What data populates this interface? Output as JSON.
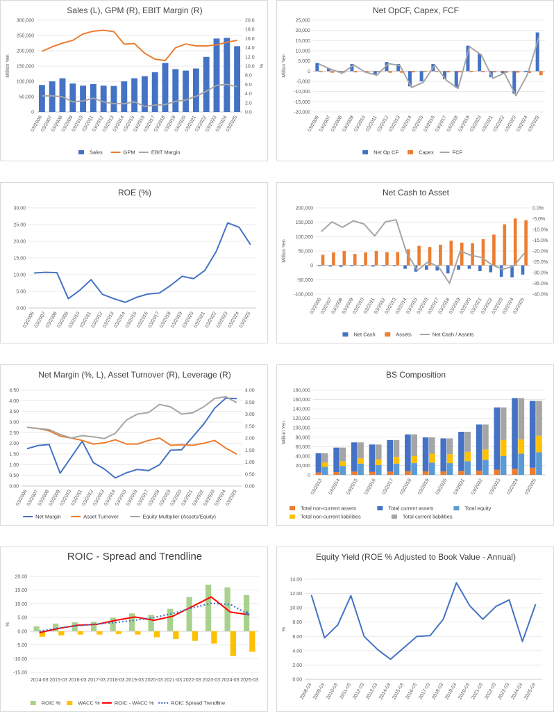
{
  "colors": {
    "blue": "#4472c4",
    "orange": "#ed7d31",
    "gray": "#a5a5a5",
    "yellow": "#ffc000",
    "lightblue": "#5b9bd5",
    "green": "#a9d18e",
    "red": "#ff0000",
    "grid": "#e3e3e3",
    "dark": "#404040"
  },
  "chart_data": [
    {
      "id": "sales",
      "type": "bar+line",
      "title": "Sales (L), GPM (R), EBIT Margin (R)",
      "ylabel": "Million Yen",
      "y2label": "%",
      "ylim": [
        0,
        300000
      ],
      "ystep": 50000,
      "y2lim": [
        0,
        20
      ],
      "y2step": 2,
      "ytick_labels": [
        "0",
        "50,000",
        "100,000",
        "150,000",
        "200,000",
        "250,000",
        "300,000"
      ],
      "y2tick_labels": [
        "0.0",
        "2.0",
        "4.0",
        "6.0",
        "8.0",
        "10.0",
        "12.0",
        "14.0",
        "16.0",
        "18.0",
        "20.0"
      ],
      "categories": [
        "03/2006",
        "03/2007",
        "03/2008",
        "03/2009",
        "03/2010",
        "03/2011",
        "03/2012",
        "03/2013",
        "03/2014",
        "03/2015",
        "03/2016",
        "03/2017",
        "03/2018",
        "03/2019",
        "03/2020",
        "03/2021",
        "03/2022",
        "03/2023",
        "03/2024",
        "03/2025"
      ],
      "series": [
        {
          "name": "Sales",
          "kind": "bar",
          "axis": "left",
          "color": "#4472c4",
          "values": [
            88000,
            100000,
            110000,
            93000,
            86000,
            91000,
            86000,
            85000,
            100000,
            110000,
            117000,
            130000,
            160000,
            140000,
            135000,
            142000,
            180000,
            240000,
            242000,
            215000
          ]
        },
        {
          "name": "GPM",
          "kind": "line",
          "axis": "right",
          "color": "#ed7d31",
          "values": [
            13.2,
            14.2,
            15.0,
            15.6,
            17.0,
            17.6,
            17.8,
            17.5,
            14.8,
            14.9,
            12.8,
            11.5,
            11.2,
            14.0,
            14.8,
            14.4,
            14.4,
            14.6,
            15.2,
            15.6
          ]
        },
        {
          "name": "EBIT Margin",
          "kind": "line",
          "axis": "right",
          "color": "#a5a5a5",
          "values": [
            3.5,
            3.5,
            3.3,
            2.2,
            2.4,
            3.0,
            2.2,
            1.8,
            1.8,
            2.2,
            1.2,
            1.5,
            1.6,
            2.3,
            2.6,
            3.4,
            4.5,
            5.8,
            6.0,
            5.5
          ]
        }
      ]
    },
    {
      "id": "opcf",
      "type": "bar+line",
      "title": "Net OpCF, Capex, FCF",
      "ylabel": "Million Yen",
      "ylim": [
        -20000,
        25000
      ],
      "ystep": 5000,
      "ytick_labels": [
        "-20,000",
        "-15,000",
        "-10,000",
        "-5,000",
        "0",
        "5,000",
        "10,000",
        "15,000",
        "20,000",
        "25,000"
      ],
      "categories": [
        "03/2006",
        "03/2007",
        "03/2008",
        "03/2009",
        "03/2010",
        "03/2011",
        "03/2012",
        "03/2013",
        "03/2014",
        "03/2015",
        "03/2016",
        "03/2017",
        "03/2018",
        "03/2019",
        "03/2020",
        "03/2021",
        "03/2022",
        "03/2023",
        "03/2024",
        "03/2025"
      ],
      "series": [
        {
          "name": "Net Op CF",
          "kind": "bar",
          "color": "#4472c4",
          "values": [
            4000,
            1500,
            -300,
            3500,
            -100,
            -1500,
            4500,
            3500,
            -7500,
            -5000,
            3500,
            -4000,
            -8000,
            12500,
            8500,
            -3000,
            -1000,
            -11000,
            -500,
            19000
          ]
        },
        {
          "name": "Capex",
          "kind": "bar",
          "color": "#ed7d31",
          "values": [
            -500,
            -800,
            -700,
            -600,
            -400,
            -500,
            -800,
            -800,
            -600,
            -400,
            -400,
            -600,
            -600,
            -500,
            -500,
            -600,
            -800,
            -700,
            -900,
            -2000
          ]
        },
        {
          "name": "FCF",
          "kind": "line",
          "color": "#a5a5a5",
          "values": [
            3500,
            1000,
            -1000,
            3000,
            -500,
            -2000,
            3700,
            2700,
            -8000,
            -5500,
            3000,
            -4500,
            -8500,
            12000,
            8000,
            -3500,
            -1000,
            -12000,
            -1500,
            17000
          ]
        }
      ]
    },
    {
      "id": "roe",
      "type": "line",
      "title": "ROE (%)",
      "ylim": [
        0,
        30
      ],
      "ystep": 5,
      "ytick_labels": [
        "0.00",
        "5.00",
        "10.00",
        "15.00",
        "20.00",
        "25.00",
        "30.00"
      ],
      "categories": [
        "03/2006",
        "03/2007",
        "03/2008",
        "03/2009",
        "03/2010",
        "03/2011",
        "03/2012",
        "03/2013",
        "03/2014",
        "03/2015",
        "03/2016",
        "03/2017",
        "03/2018",
        "03/2019",
        "03/2020",
        "03/2021",
        "03/2022",
        "03/2023",
        "03/2024",
        "03/2025"
      ],
      "series": [
        {
          "name": "ROE",
          "kind": "line",
          "color": "#4472c4",
          "values": [
            10.5,
            10.7,
            10.6,
            2.8,
            5.3,
            8.5,
            4.1,
            2.8,
            1.7,
            3.2,
            4.2,
            4.5,
            6.8,
            9.5,
            8.8,
            11.3,
            17.0,
            25.5,
            24.2,
            19.0
          ]
        }
      ]
    },
    {
      "id": "netcash",
      "type": "bar+line",
      "title": "Net Cash to Asset",
      "ylabel": "Million Yen",
      "ylim": [
        -100000,
        200000
      ],
      "ystep": 50000,
      "y2lim": [
        -40,
        0
      ],
      "y2step": 5,
      "ytick_labels": [
        "-100,000",
        "-50,000",
        "0",
        "50,000",
        "100,000",
        "150,000",
        "200,000"
      ],
      "y2tick_labels": [
        "-40.0%",
        "-35.0%",
        "-30.0%",
        "-25.0%",
        "-20.0%",
        "-15.0%",
        "-10.0%",
        "-5.0%",
        "0.0%"
      ],
      "categories": [
        "03/2006",
        "03/2007",
        "03/2008",
        "03/2009",
        "03/2010",
        "03/2011",
        "03/2012",
        "03/2013",
        "03/2014",
        "03/2015",
        "03/2016",
        "03/2017",
        "03/2018",
        "03/2019",
        "03/2020",
        "03/2021",
        "03/2022",
        "03/2023",
        "03/2024",
        "03/2025"
      ],
      "series": [
        {
          "name": "Net Cash",
          "kind": "bar",
          "color": "#4472c4",
          "values": [
            -3000,
            -4000,
            -5000,
            -3000,
            -3000,
            -4000,
            -3000,
            -3000,
            -12000,
            -22000,
            -15000,
            -18000,
            -28000,
            -15000,
            -12000,
            -20000,
            -24000,
            -40000,
            -42000,
            -32000
          ]
        },
        {
          "name": "Assets",
          "kind": "bar",
          "color": "#ed7d31",
          "values": [
            37000,
            45000,
            50000,
            40000,
            45000,
            50000,
            46000,
            46000,
            56000,
            68000,
            64000,
            72000,
            86000,
            79000,
            77000,
            91000,
            107000,
            143000,
            163000,
            157000
          ]
        },
        {
          "name": "Net Cash / Assets",
          "kind": "line",
          "axis": "right",
          "color": "#a5a5a5",
          "values": [
            -11.0,
            -6.5,
            -9.0,
            -6.0,
            -7.5,
            -13.0,
            -6.5,
            -5.5,
            -21.0,
            -29.0,
            -25.0,
            -27.5,
            -35.0,
            -20.0,
            -22.0,
            -23.0,
            -26.5,
            -28.5,
            -27.0,
            -21.0
          ]
        }
      ]
    },
    {
      "id": "dupont",
      "type": "line",
      "title": "Net Margin (%, L), Asset Turnover (R), Leverage (R)",
      "ylim": [
        0,
        4.5
      ],
      "ystep": 0.5,
      "y2lim": [
        0,
        4
      ],
      "y2step": 0.5,
      "ytick_labels": [
        "0.00",
        "0.50",
        "1.00",
        "1.50",
        "2.00",
        "2.50",
        "3.00",
        "3.50",
        "4.00",
        "4.50"
      ],
      "y2tick_labels": [
        "0.00",
        "0.50",
        "1.00",
        "1.50",
        "2.00",
        "2.50",
        "3.00",
        "3.50",
        "4.00"
      ],
      "categories": [
        "03/2006",
        "03/2007",
        "03/2008",
        "03/2009",
        "03/2010",
        "03/2011",
        "03/2012",
        "03/2013",
        "03/2014",
        "03/2015",
        "03/2016",
        "03/2017",
        "03/2018",
        "03/2019",
        "03/2020",
        "03/2021",
        "03/2022",
        "03/2023",
        "03/2024",
        "03/2025"
      ],
      "series": [
        {
          "name": "Net Margin",
          "kind": "line",
          "axis": "left",
          "color": "#4472c4",
          "values": [
            1.75,
            1.9,
            1.95,
            0.6,
            1.35,
            2.1,
            1.1,
            0.8,
            0.38,
            0.62,
            0.78,
            0.72,
            1.0,
            1.68,
            1.7,
            2.3,
            2.9,
            3.65,
            4.12,
            4.1
          ]
        },
        {
          "name": "Asset Turnover",
          "kind": "line",
          "axis": "right",
          "color": "#ed7d31",
          "values": [
            2.45,
            2.4,
            2.3,
            2.08,
            2.0,
            1.9,
            1.75,
            1.8,
            1.93,
            1.75,
            1.75,
            1.9,
            2.0,
            1.7,
            1.72,
            1.7,
            1.78,
            1.9,
            1.58,
            1.33
          ]
        },
        {
          "name": "Equity Multiplier (Assets/Equity)",
          "kind": "line",
          "axis": "right",
          "color": "#a5a5a5",
          "values": [
            2.45,
            2.4,
            2.35,
            2.15,
            2.0,
            2.1,
            2.05,
            1.98,
            2.2,
            2.75,
            3.0,
            3.06,
            3.4,
            3.3,
            3.0,
            3.05,
            3.3,
            3.65,
            3.72,
            3.48
          ]
        }
      ]
    },
    {
      "id": "bs",
      "type": "stacked-bar",
      "title": "BS Composition",
      "ylabel": "Million Yen",
      "ylim": [
        0,
        180000
      ],
      "ystep": 20000,
      "ytick_labels": [
        "0",
        "20,000",
        "40,000",
        "60,000",
        "80,000",
        "100,000",
        "120,000",
        "140,000",
        "160,000",
        "180,000"
      ],
      "categories": [
        "03/2013",
        "03/2014",
        "03/2015",
        "03/2016",
        "03/2017",
        "03/2018",
        "03/2019",
        "03/2020",
        "03/2021",
        "03/2022",
        "03/2023",
        "03/2024",
        "03/2025"
      ],
      "groups": [
        {
          "stack": "assets",
          "name": "Total non-current assets",
          "color": "#ed7d31",
          "values": [
            5000,
            6000,
            7000,
            6500,
            7000,
            8000,
            7500,
            7500,
            8500,
            9000,
            11000,
            13000,
            15000
          ]
        },
        {
          "stack": "assets",
          "name": "Total current assets",
          "color": "#4472c4",
          "values": [
            41000,
            52000,
            62000,
            58000,
            67000,
            78000,
            72000,
            70000,
            83000,
            98000,
            132000,
            150000,
            142000
          ]
        },
        {
          "stack": "liab",
          "name": "Total equity",
          "color": "#5b9bd5",
          "values": [
            17000,
            19000,
            24000,
            21000,
            24000,
            25000,
            26000,
            25000,
            29000,
            32000,
            40000,
            45000,
            48000
          ]
        },
        {
          "stack": "liab",
          "name": "Total non-current liabilities",
          "color": "#ffc000",
          "values": [
            9000,
            10000,
            11000,
            12000,
            14000,
            15000,
            19000,
            19000,
            20000,
            22000,
            34000,
            30000,
            35000
          ]
        },
        {
          "stack": "liab",
          "name": "Total current liabilities",
          "color": "#a5a5a5",
          "values": [
            20000,
            29000,
            34000,
            31500,
            36000,
            46000,
            34500,
            33500,
            42500,
            53000,
            69000,
            88000,
            74000
          ]
        }
      ]
    },
    {
      "id": "roic",
      "type": "bar+line",
      "title": "ROIC - Spread and Trendline",
      "ylabel": "%",
      "ylim": [
        -15,
        20
      ],
      "ystep": 5,
      "ytick_labels": [
        "-15.00",
        "-10.00",
        "-5.00",
        "0.00",
        "5.00",
        "10.00",
        "15.00",
        "20.00"
      ],
      "categories": [
        "2014-03",
        "2015-03",
        "2016-03",
        "2017-03",
        "2018-03",
        "2019-03",
        "2020-03",
        "2021-03",
        "2022-03",
        "2023-03",
        "2024-03",
        "2025-03"
      ],
      "series": [
        {
          "name": "ROIC %",
          "kind": "bar",
          "color": "#a9d18e",
          "values": [
            1.8,
            2.8,
            3.3,
            3.5,
            5.0,
            6.5,
            6.0,
            8.2,
            12.5,
            17.0,
            16.0,
            13.2
          ]
        },
        {
          "name": "WACC %",
          "kind": "bar",
          "color": "#ffc000",
          "values": [
            -2.0,
            -1.5,
            -1.2,
            -1.2,
            -1.0,
            -1.2,
            -2.2,
            -2.8,
            -3.5,
            -4.5,
            -9.0,
            -7.5
          ]
        },
        {
          "name": "ROIC - WACC %",
          "kind": "line",
          "color": "#ff0000",
          "values": [
            -0.5,
            1.0,
            2.2,
            2.5,
            4.0,
            5.2,
            4.0,
            5.5,
            9.0,
            12.5,
            7.0,
            6.0
          ]
        },
        {
          "name": "ROIC Spread Trendline",
          "kind": "dotted-line",
          "color": "#4472c4",
          "values": [
            0.0,
            1.2,
            2.0,
            2.6,
            3.2,
            4.0,
            5.0,
            6.5,
            8.5,
            10.2,
            9.8,
            6.0
          ]
        }
      ]
    },
    {
      "id": "equity",
      "type": "line",
      "title": "Equity Yield (ROE % Adjusted to Book Value - Annual)",
      "ylabel": "%",
      "ylim": [
        0,
        14
      ],
      "ystep": 2,
      "ytick_labels": [
        "0.00",
        "2.00",
        "4.00",
        "6.00",
        "8.00",
        "10.00",
        "12.00",
        "14.00"
      ],
      "categories": [
        "2008-03",
        "2009-03",
        "2010-03",
        "2011-03",
        "2012-03",
        "2013-03",
        "2014-03",
        "2015-03",
        "2016-03",
        "2017-03",
        "2018-03",
        "2019-03",
        "2020-03",
        "2021-03",
        "2022-03",
        "2023-03",
        "2024-03",
        "2025-03"
      ],
      "series": [
        {
          "name": "Equity Yield",
          "kind": "line",
          "color": "#4472c4",
          "values": [
            11.8,
            5.8,
            7.6,
            11.7,
            6.0,
            4.2,
            2.8,
            4.4,
            6.0,
            6.1,
            8.4,
            13.5,
            10.3,
            8.4,
            10.2,
            11.1,
            5.3,
            10.5
          ]
        }
      ]
    }
  ]
}
